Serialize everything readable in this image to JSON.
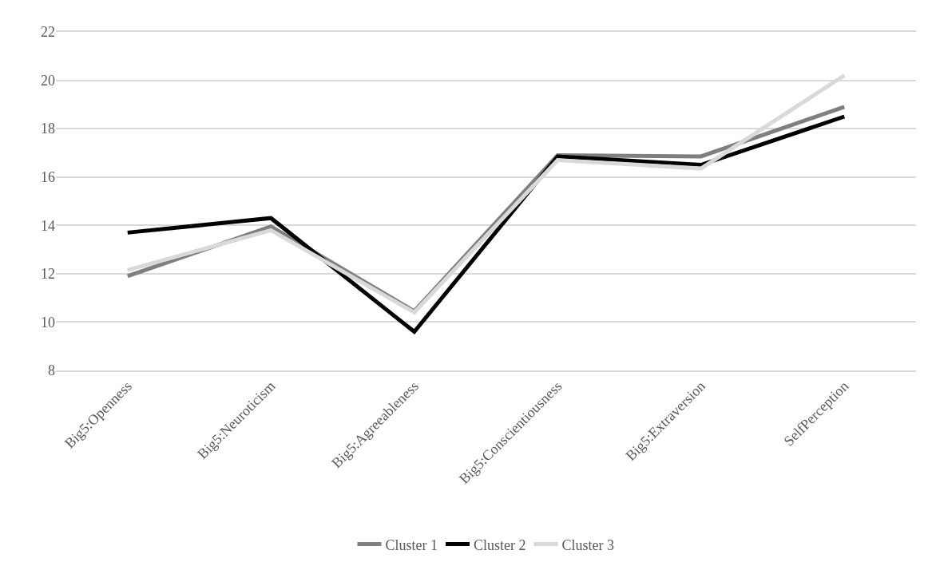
{
  "chart_data": {
    "type": "line",
    "categories": [
      "Big5:Openness",
      "Big5:Neuroticism",
      "Big5:Agreeableness",
      "Big5:Conscientiousness",
      "Big5:Extraversion",
      "SelfPerception"
    ],
    "series": [
      {
        "name": "Cluster 1",
        "color": "#7f7f7f",
        "values": [
          11.9,
          13.95,
          10.45,
          16.9,
          16.85,
          18.9
        ]
      },
      {
        "name": "Cluster 2",
        "color": "#000000",
        "values": [
          13.7,
          14.3,
          9.6,
          16.85,
          16.5,
          18.5
        ]
      },
      {
        "name": "Cluster 3",
        "color": "#d9d9d9",
        "values": [
          12.15,
          13.8,
          10.4,
          16.7,
          16.35,
          20.2
        ]
      }
    ],
    "ylim": [
      8,
      22
    ],
    "yticks": [
      8,
      10,
      12,
      14,
      16,
      18,
      20,
      22
    ],
    "grid": "y",
    "legend": "bottom",
    "marker": "none",
    "line_style": "solid"
  }
}
